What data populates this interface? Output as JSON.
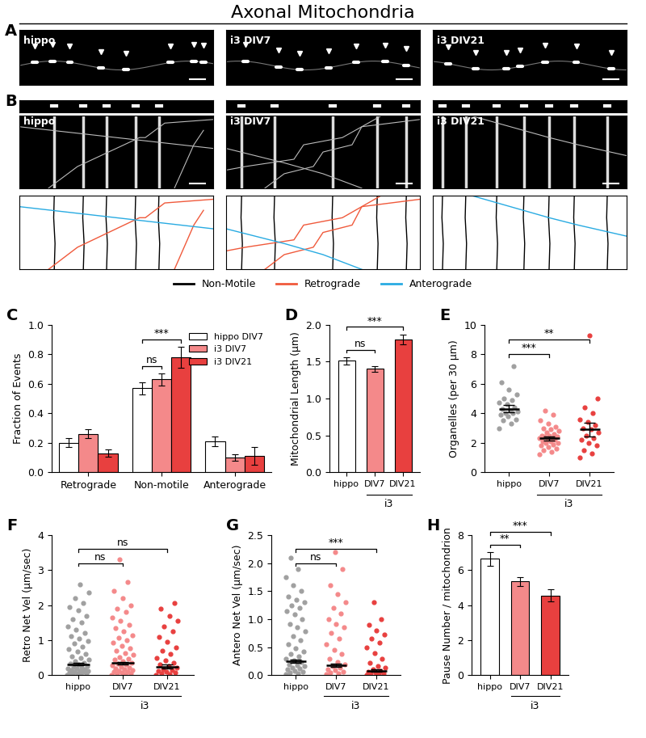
{
  "title": "Axonal Mitochondria",
  "image_panels": [
    {
      "panel": "A",
      "labels": [
        "hippo",
        "i3 DIV7",
        "i3 DIV21"
      ]
    },
    {
      "panel": "B",
      "labels": [
        "hippo",
        "i3 DIV7",
        "i3 DIV21"
      ],
      "legend": [
        {
          "name": "Non-Motile",
          "color": "#000000"
        },
        {
          "name": "Retrograde",
          "color": "#f05a3c"
        },
        {
          "name": "Anterograde",
          "color": "#29abe2"
        }
      ]
    }
  ],
  "chart_data": [
    {
      "panel": "C",
      "type": "bar",
      "categories": [
        "Retrograde",
        "Non-motile",
        "Anterograde"
      ],
      "series": [
        {
          "name": "hippo DIV7",
          "color": "#ffffff",
          "values": [
            0.2,
            0.57,
            0.21
          ],
          "errors": [
            0.03,
            0.04,
            0.035
          ]
        },
        {
          "name": "i3 DIV7",
          "color": "#f4898a",
          "values": [
            0.26,
            0.63,
            0.1
          ],
          "errors": [
            0.03,
            0.04,
            0.02
          ]
        },
        {
          "name": "i3 DIV21",
          "color": "#e8403f",
          "values": [
            0.13,
            0.78,
            0.11
          ],
          "errors": [
            0.025,
            0.07,
            0.06
          ]
        }
      ],
      "ylabel": "Fraction of Events",
      "ylim": [
        0,
        1.0
      ],
      "yticks": [
        {
          "value": 0,
          "label": "0.0"
        },
        {
          "value": 0.2,
          "label": "0.2"
        },
        {
          "value": 0.4,
          "label": "0.4"
        },
        {
          "value": 0.6,
          "label": "0.6"
        },
        {
          "value": 0.8,
          "label": "0.8"
        },
        {
          "value": 1.0,
          "label": "1.0"
        }
      ],
      "legend": "upper right",
      "comparisons": [
        {
          "category": "Non-motile",
          "from": "hippo DIV7",
          "to": "i3 DIV7",
          "text": "ns"
        },
        {
          "category": "Non-motile",
          "from": "hippo DIV7",
          "to": "i3 DIV21",
          "text": "***"
        }
      ]
    },
    {
      "panel": "D",
      "type": "bar",
      "categories": [
        "hippo",
        "DIV7",
        "DIV21"
      ],
      "colors": [
        "#ffffff",
        "#f4898a",
        "#e8403f"
      ],
      "values": [
        1.51,
        1.4,
        1.8
      ],
      "errors": [
        0.05,
        0.04,
        0.07
      ],
      "group_label": {
        "text": "i3",
        "categories": [
          "DIV7",
          "DIV21"
        ]
      },
      "ylabel": "Mitochondrial Length (µm)",
      "ylim": [
        0,
        2.0
      ],
      "yticks": [
        {
          "value": 0,
          "label": "0.0"
        },
        {
          "value": 0.5,
          "label": "0.5"
        },
        {
          "value": 1.0,
          "label": "1.0"
        },
        {
          "value": 1.5,
          "label": "1.5"
        },
        {
          "value": 2.0,
          "label": "2.0"
        }
      ],
      "comparisons": [
        {
          "from": "hippo",
          "to": "DIV7",
          "text": "ns"
        },
        {
          "from": "hippo",
          "to": "DIV21",
          "text": "***"
        }
      ]
    },
    {
      "panel": "E",
      "type": "scatter",
      "categories": [
        "hippo",
        "DIV7",
        "DIV21"
      ],
      "colors": [
        "#a0a0a0",
        "#f4898a",
        "#e8403f"
      ],
      "points": [
        [
          3.0,
          3.3,
          3.5,
          3.6,
          3.8,
          3.9,
          4.0,
          4.0,
          4.1,
          4.2,
          4.3,
          4.4,
          4.6,
          4.7,
          4.9,
          5.0,
          5.3,
          5.6,
          6.1,
          7.2
        ],
        [
          1.2,
          1.4,
          1.5,
          1.6,
          1.7,
          1.8,
          1.9,
          2.0,
          2.0,
          2.1,
          2.1,
          2.2,
          2.2,
          2.3,
          2.3,
          2.4,
          2.4,
          2.5,
          2.5,
          2.6,
          2.7,
          2.8,
          2.9,
          3.0,
          3.1,
          3.3,
          3.5,
          3.9,
          4.2
        ],
        [
          1.0,
          1.3,
          1.5,
          1.8,
          2.0,
          2.2,
          2.3,
          2.5,
          2.7,
          2.9,
          3.0,
          3.2,
          3.4,
          3.6,
          4.0,
          4.4,
          5.0,
          9.3
        ]
      ],
      "values": [
        4.3,
        2.3,
        2.9
      ],
      "errors": [
        0.25,
        0.15,
        0.45
      ],
      "group_label": {
        "text": "i3",
        "categories": [
          "DIV7",
          "DIV21"
        ]
      },
      "ylabel": "Organelles (per 30 µm)",
      "ylim": [
        0,
        10
      ],
      "yticks": [
        0,
        2,
        4,
        6,
        8,
        10
      ],
      "comparisons": [
        {
          "from": "hippo",
          "to": "DIV7",
          "text": "***"
        },
        {
          "from": "hippo",
          "to": "DIV21",
          "text": "**"
        }
      ]
    },
    {
      "panel": "F",
      "type": "scatter",
      "categories": [
        "hippo",
        "DIV7",
        "DIV21"
      ],
      "colors": [
        "#a0a0a0",
        "#f4898a",
        "#e8403f"
      ],
      "points": [
        [
          0.02,
          0.03,
          0.04,
          0.05,
          0.06,
          0.08,
          0.09,
          0.1,
          0.12,
          0.13,
          0.15,
          0.17,
          0.19,
          0.2,
          0.22,
          0.25,
          0.27,
          0.3,
          0.33,
          0.36,
          0.4,
          0.45,
          0.5,
          0.55,
          0.6,
          0.68,
          0.75,
          0.82,
          0.9,
          0.98,
          1.05,
          1.12,
          1.2,
          1.3,
          1.4,
          1.5,
          1.6,
          1.7,
          1.85,
          1.95,
          2.05,
          2.2,
          2.35,
          2.6
        ],
        [
          0.02,
          0.03,
          0.05,
          0.06,
          0.08,
          0.1,
          0.11,
          0.13,
          0.15,
          0.17,
          0.2,
          0.22,
          0.25,
          0.28,
          0.3,
          0.33,
          0.36,
          0.4,
          0.44,
          0.48,
          0.52,
          0.58,
          0.63,
          0.7,
          0.78,
          0.85,
          0.92,
          1.0,
          1.08,
          1.15,
          1.25,
          1.35,
          1.45,
          1.55,
          1.65,
          1.8,
          1.9,
          2.0,
          2.2,
          2.4,
          2.65,
          3.3
        ],
        [
          0.02,
          0.03,
          0.05,
          0.07,
          0.09,
          0.12,
          0.15,
          0.18,
          0.22,
          0.26,
          0.3,
          0.35,
          0.42,
          0.5,
          0.6,
          0.7,
          0.8,
          0.95,
          1.1,
          1.25,
          1.4,
          1.55,
          1.7,
          1.9,
          2.05
        ]
      ],
      "values": [
        0.32,
        0.35,
        0.25
      ],
      "errors": [
        0.03,
        0.03,
        0.06
      ],
      "group_label": {
        "text": "i3",
        "categories": [
          "DIV7",
          "DIV21"
        ]
      },
      "ylabel": "Retro Net Vel (µm/sec)",
      "ylim": [
        0,
        4
      ],
      "yticks": [
        0,
        1,
        2,
        3,
        4
      ],
      "comparisons": [
        {
          "from": "hippo",
          "to": "DIV7",
          "text": "ns"
        },
        {
          "from": "hippo",
          "to": "DIV21",
          "text": "ns"
        }
      ]
    },
    {
      "panel": "G",
      "type": "scatter",
      "categories": [
        "hippo",
        "DIV7",
        "DIV21"
      ],
      "colors": [
        "#a0a0a0",
        "#f4898a",
        "#e8403f"
      ],
      "points": [
        [
          0.02,
          0.03,
          0.05,
          0.06,
          0.08,
          0.1,
          0.12,
          0.14,
          0.16,
          0.18,
          0.2,
          0.23,
          0.26,
          0.3,
          0.34,
          0.38,
          0.42,
          0.48,
          0.55,
          0.62,
          0.7,
          0.78,
          0.85,
          0.92,
          1.0,
          1.08,
          1.15,
          1.2,
          1.25,
          1.3,
          1.35,
          1.4,
          1.5,
          1.6,
          1.75,
          1.9,
          2.1
        ],
        [
          0.02,
          0.03,
          0.05,
          0.07,
          0.09,
          0.11,
          0.13,
          0.16,
          0.2,
          0.24,
          0.3,
          0.38,
          0.45,
          0.55,
          0.65,
          0.75,
          0.85,
          0.92,
          1.0,
          1.1,
          1.2,
          1.3,
          1.45,
          1.6,
          1.9,
          2.2
        ],
        [
          0.01,
          0.02,
          0.03,
          0.04,
          0.05,
          0.06,
          0.08,
          0.1,
          0.13,
          0.17,
          0.22,
          0.3,
          0.4,
          0.5,
          0.58,
          0.65,
          0.72,
          0.8,
          0.9,
          1.0,
          1.3
        ]
      ],
      "values": [
        0.25,
        0.18,
        0.08
      ],
      "errors": [
        0.03,
        0.03,
        0.02
      ],
      "group_label": {
        "text": "i3",
        "categories": [
          "DIV7",
          "DIV21"
        ]
      },
      "ylabel": "Antero Net Vel (µm/sec)",
      "ylim": [
        0,
        2.5
      ],
      "yticks": [
        {
          "value": 0,
          "label": "0.0"
        },
        {
          "value": 0.5,
          "label": "0.5"
        },
        {
          "value": 1.0,
          "label": "1.0"
        },
        {
          "value": 1.5,
          "label": "1.5"
        },
        {
          "value": 2.0,
          "label": "2.0"
        },
        {
          "value": 2.5,
          "label": "2.5"
        }
      ],
      "comparisons": [
        {
          "from": "hippo",
          "to": "DIV7",
          "text": "ns"
        },
        {
          "from": "hippo",
          "to": "DIV21",
          "text": "***"
        }
      ]
    },
    {
      "panel": "H",
      "type": "bar",
      "categories": [
        "hippo",
        "DIV7",
        "DIV21"
      ],
      "colors": [
        "#ffffff",
        "#f4898a",
        "#e8403f"
      ],
      "values": [
        6.65,
        5.35,
        4.55
      ],
      "errors": [
        0.4,
        0.25,
        0.35
      ],
      "group_label": {
        "text": "i3",
        "categories": [
          "DIV7",
          "DIV21"
        ]
      },
      "ylabel": "Pause Number / mitochondrion",
      "ylim": [
        0,
        8
      ],
      "yticks": [
        0,
        2,
        4,
        6,
        8
      ],
      "comparisons": [
        {
          "from": "hippo",
          "to": "DIV7",
          "text": "**"
        },
        {
          "from": "hippo",
          "to": "DIV21",
          "text": "***"
        }
      ]
    }
  ]
}
